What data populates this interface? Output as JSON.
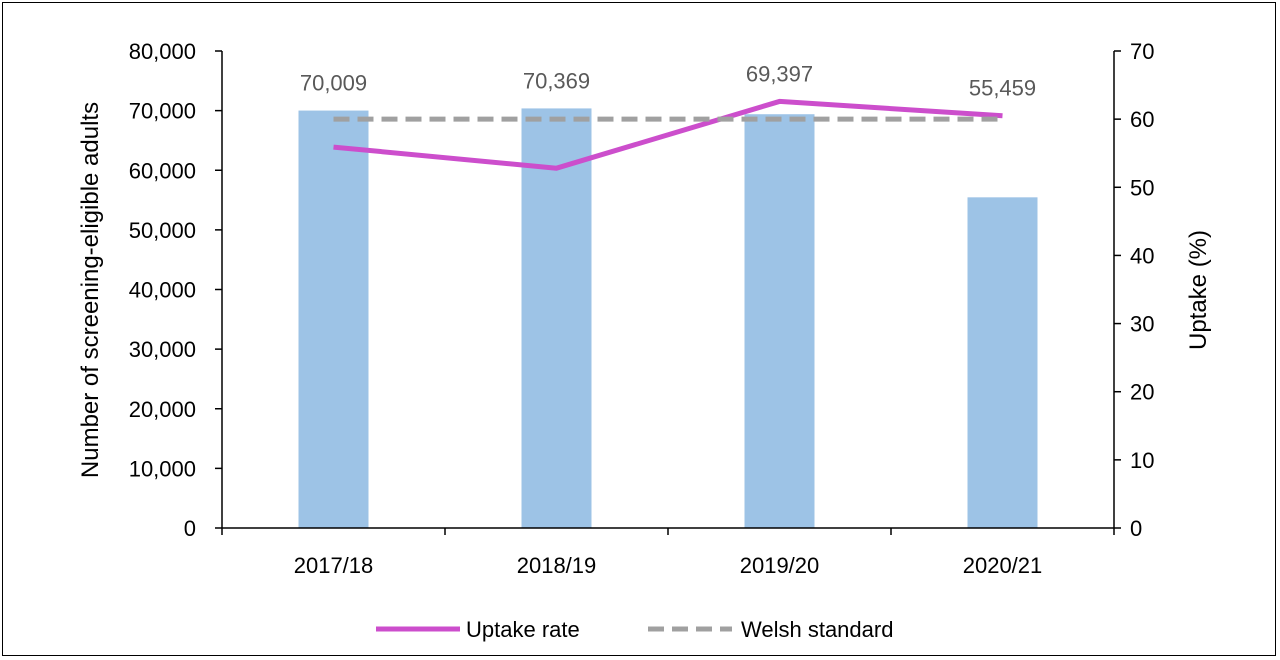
{
  "chart_data": {
    "type": "bar",
    "categories": [
      "2017/18",
      "2018/19",
      "2019/20",
      "2020/21"
    ],
    "bars": {
      "values": [
        70009,
        70369,
        69397,
        55459
      ],
      "labels": [
        "70,009",
        "70,369",
        "69,397",
        "55,459"
      ],
      "color": "#9DC3E6"
    },
    "left_axis": {
      "label": "Number of screening-eligible adults",
      "ylim": [
        0,
        80000
      ],
      "ticks": [
        "0",
        "10,000",
        "20,000",
        "30,000",
        "40,000",
        "50,000",
        "60,000",
        "70,000",
        "80,000"
      ]
    },
    "right_axis": {
      "label": "Uptake (%)",
      "ylim": [
        0,
        70
      ],
      "ticks": [
        "0",
        "10",
        "20",
        "30",
        "40",
        "50",
        "60",
        "70"
      ]
    },
    "series": [
      {
        "name": "Uptake rate",
        "axis": "right",
        "style": "solid",
        "color": "#CC4ECC",
        "values": [
          55.9,
          52.8,
          62.6,
          60.5
        ]
      },
      {
        "name": "Welsh standard",
        "axis": "right",
        "style": "dashed",
        "color": "#A0A0A0",
        "values": [
          60,
          60,
          60,
          60
        ]
      }
    ],
    "legend_position": "bottom-center",
    "grid": false
  }
}
